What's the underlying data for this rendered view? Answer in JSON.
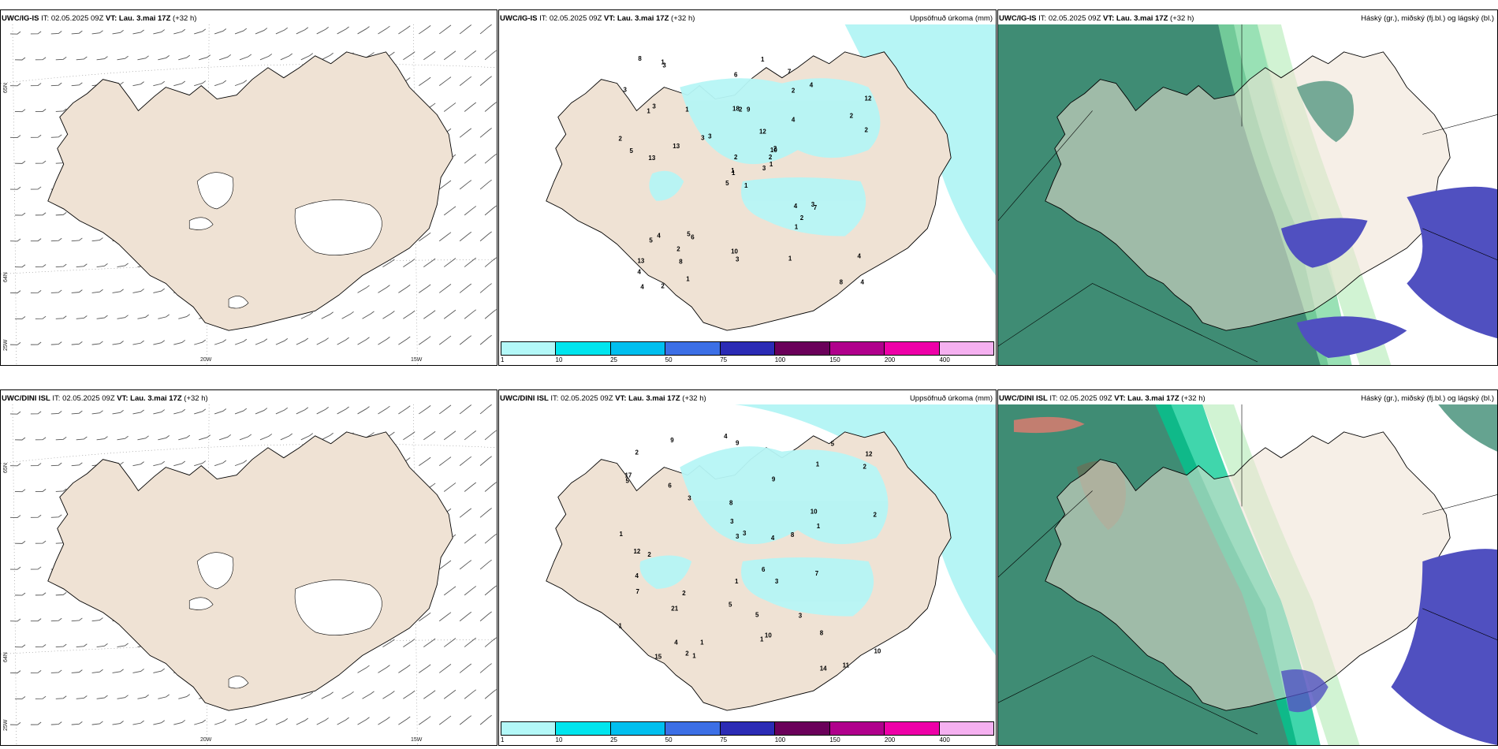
{
  "rows": [
    {
      "model": "UWC/IG-IS",
      "it_label": "IT:",
      "it_value": "02.05.2025 09Z",
      "vt_label": "VT:",
      "vt_value": "Lau. 3.mai 17Z",
      "lead": "(+32 h)",
      "lat_labels": [
        "65N",
        "64N"
      ],
      "lon_labels": [
        "20W",
        "15W"
      ],
      "left_lat": "25W",
      "precip_numbers": [
        "1",
        "1",
        "1",
        "13",
        "10",
        "6",
        "7",
        "9",
        "2",
        "3",
        "3",
        "4",
        "13",
        "12",
        "5",
        "4",
        "2",
        "18",
        "12",
        "4",
        "3",
        "4",
        "8",
        "2",
        "2",
        "7",
        "3",
        "6",
        "5",
        "4",
        "2",
        "1",
        "10",
        "2",
        "1",
        "4",
        "5",
        "8",
        "4",
        "3",
        "1",
        "3",
        "13",
        "1",
        "1",
        "2",
        "2",
        "4",
        "3",
        "1",
        "5",
        "2",
        "3",
        "2",
        "1",
        "2",
        "1",
        "8"
      ]
    },
    {
      "model": "UWC/DINI ISL",
      "it_label": "IT:",
      "it_value": "02.05.2025 09Z",
      "vt_label": "VT:",
      "vt_value": "Lau. 3.mai 17Z",
      "lead": "(+32 h)",
      "lat_labels": [
        "65N",
        "64N"
      ],
      "lon_labels": [
        "20W",
        "15W"
      ],
      "left_lat": "25W",
      "precip_numbers": [
        "1",
        "9",
        "10",
        "12",
        "17",
        "11",
        "2",
        "9",
        "8",
        "5",
        "3",
        "7",
        "4",
        "5",
        "6",
        "21",
        "10",
        "12",
        "6",
        "5",
        "3",
        "8",
        "2",
        "3",
        "4",
        "3",
        "3",
        "9",
        "1",
        "1",
        "4",
        "14",
        "4",
        "15",
        "2",
        "7",
        "1",
        "2",
        "1",
        "3",
        "5",
        "8",
        "10",
        "2",
        "1",
        "2",
        "1",
        "1"
      ]
    }
  ],
  "precip_title": "Uppsöfnuð úrkoma (mm)",
  "cloud_title": "Háský (gr.), miðský (fj.bl.) og lágský (bl.)",
  "colorbar": {
    "ticks": [
      "1",
      "10",
      "25",
      "50",
      "75",
      "100",
      "150",
      "200",
      "400"
    ],
    "colors": [
      "#b3f8f8",
      "#00e5ee",
      "#00bfef",
      "#3c6fe6",
      "#2b2bb5",
      "#6a005a",
      "#b0008c",
      "#ee00a8",
      "#f5b0f0"
    ]
  },
  "colors": {
    "land": "#efe2d4",
    "wind_barb": "#555555",
    "precip_light": "#b6f5f5",
    "cloud_high": "#3c8a70",
    "cloud_mid_green": "#7fd9a3",
    "cloud_low_blue": "#5050c0"
  }
}
